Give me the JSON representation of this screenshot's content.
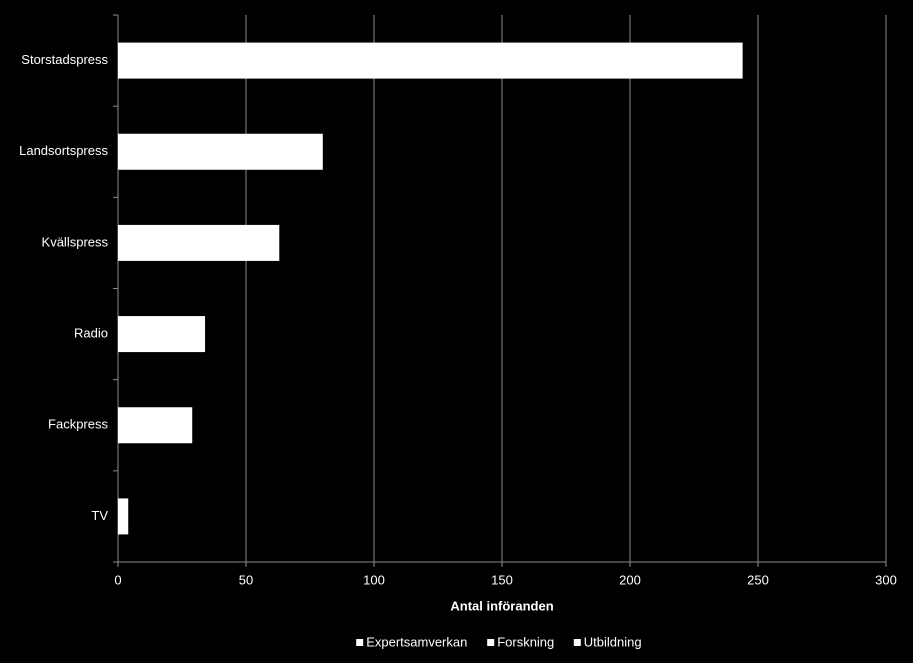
{
  "chart_data": {
    "type": "stacked-barh",
    "x_label": "Antal införanden",
    "categories": [
      "Storstadspress",
      "Landsortspress",
      "Kvällspress",
      "Radio",
      "Fackpress",
      "TV"
    ],
    "series": [
      {
        "name": "Expertsamverkan",
        "color": "#ffffff",
        "values": [
          244,
          80,
          63,
          34,
          29,
          4
        ]
      },
      {
        "name": "Forskning",
        "color": "#ffffff",
        "values": [
          0,
          0,
          0,
          0,
          0,
          0
        ]
      },
      {
        "name": "Utbildning",
        "color": "#ffffff",
        "values": [
          0,
          0,
          0,
          0,
          0,
          0
        ]
      }
    ],
    "xlim": [
      0,
      300
    ],
    "xticks": [
      0,
      50,
      100,
      150,
      200,
      250,
      300
    ],
    "grid": true,
    "legend": "bottom"
  }
}
